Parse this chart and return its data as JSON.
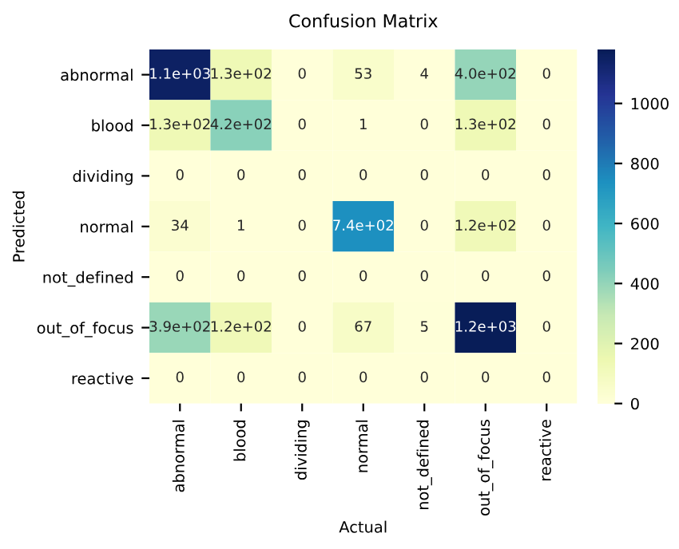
{
  "chart_data": {
    "type": "heatmap",
    "title": "Confusion Matrix",
    "xlabel": "Actual",
    "ylabel": "Predicted",
    "categories": [
      "abnormal",
      "blood",
      "dividing",
      "normal",
      "not_defined",
      "out_of_focus",
      "reactive"
    ],
    "y_categories": [
      "abnormal",
      "blood",
      "dividing",
      "normal",
      "not_defined",
      "out_of_focus",
      "reactive"
    ],
    "cells": [
      [
        1150,
        130,
        0,
        53,
        4,
        400,
        0
      ],
      [
        130,
        420,
        0,
        1,
        0,
        130,
        0
      ],
      [
        0,
        0,
        0,
        0,
        0,
        0,
        0
      ],
      [
        34,
        1,
        0,
        740,
        0,
        120,
        0
      ],
      [
        0,
        0,
        0,
        0,
        0,
        0,
        0
      ],
      [
        390,
        120,
        0,
        67,
        5,
        1180,
        0
      ],
      [
        0,
        0,
        0,
        0,
        0,
        0,
        0
      ]
    ],
    "cell_labels": [
      [
        "1.1e+03",
        "1.3e+02",
        "0",
        "53",
        "4",
        "4.0e+02",
        "0"
      ],
      [
        "1.3e+02",
        "4.2e+02",
        "0",
        "1",
        "0",
        "1.3e+02",
        "0"
      ],
      [
        "0",
        "0",
        "0",
        "0",
        "0",
        "0",
        "0"
      ],
      [
        "34",
        "1",
        "0",
        "7.4e+02",
        "0",
        "1.2e+02",
        "0"
      ],
      [
        "0",
        "0",
        "0",
        "0",
        "0",
        "0",
        "0"
      ],
      [
        "3.9e+02",
        "1.2e+02",
        "0",
        "67",
        "5",
        "1.2e+03",
        "0"
      ],
      [
        "0",
        "0",
        "0",
        "0",
        "0",
        "0",
        "0"
      ]
    ],
    "clim": [
      0,
      1180
    ],
    "cticks": [
      0,
      200,
      400,
      600,
      800,
      1000
    ]
  }
}
